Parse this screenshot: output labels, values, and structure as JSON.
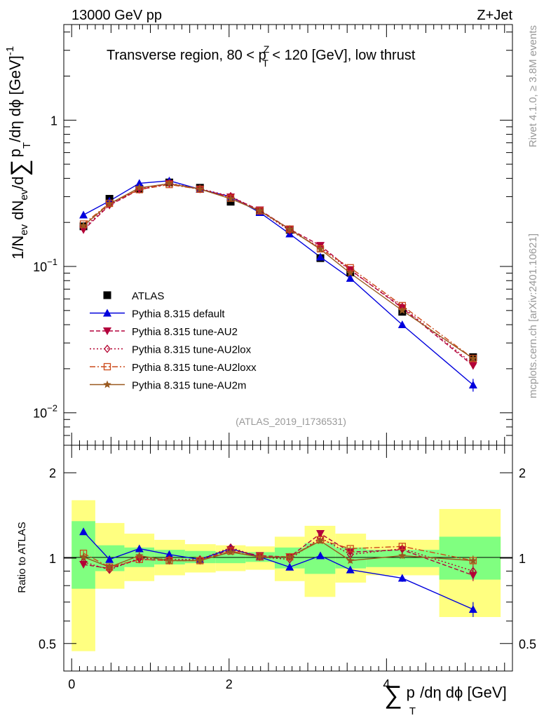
{
  "header": {
    "energy_label": "13000 GeV pp",
    "process_label": "Z+Jet"
  },
  "side_labels": {
    "rivet": "Rivet 4.1.0, ≥ 3.8M events",
    "source": "mcplots.cern.ch [arXiv:2401.10621]"
  },
  "watermark": "(ATLAS_2019_I1736531)",
  "colors": {
    "ATLAS": "#000000",
    "default": "#0000dd",
    "AU2": "#b3003c",
    "AU2lox": "#b3002e",
    "AU2loxx": "#cc4a1a",
    "AU2m": "#99591f",
    "band_inner": "#80ff80",
    "band_outer": "#ffff80"
  },
  "chart_data": [
    {
      "type": "line",
      "scale": "log",
      "title": "Transverse region, 80 < p_T^Z < 120 [GeV], low thrust",
      "title_parts": [
        "Transverse region, 80 < p",
        "Z",
        "T",
        " < 120 [GeV], low thrust"
      ],
      "ylabel": "1/N_ev dN_ev/d∑ p_T /dη dϕ [GeV]^-1",
      "ylabel_parts": [
        "1/N",
        "ev",
        " dN",
        "ev",
        "/d",
        "∑",
        "p",
        "T",
        "/dη dϕ  [GeV]",
        "-1"
      ],
      "xlim": [
        -0.1,
        5.6
      ],
      "ylim": [
        0.006,
        4.5
      ],
      "ytick_labels": [
        {
          "value": 1,
          "label": "1",
          "sup": ""
        },
        {
          "value": 0.1,
          "label": "10",
          "sup": "−1"
        },
        {
          "value": 0.01,
          "label": "10",
          "sup": "−2"
        }
      ],
      "x": [
        0.15,
        0.48,
        0.86,
        1.24,
        1.63,
        2.02,
        2.39,
        2.77,
        3.16,
        3.54,
        4.2,
        5.1
      ],
      "series": [
        {
          "name": "ATLAS",
          "key": "ATLAS",
          "marker": "square",
          "values": [
            0.188,
            0.29,
            0.34,
            0.375,
            0.345,
            0.277,
            0.237,
            0.178,
            0.114,
            0.091,
            0.049,
            0.024
          ]
        },
        {
          "name": "Pythia 8.315 default",
          "key": "default",
          "marker": "triangle-up",
          "dash": "",
          "values": [
            0.225,
            0.28,
            0.37,
            0.385,
            0.337,
            0.3,
            0.234,
            0.167,
            0.116,
            0.083,
            0.04,
            0.0155
          ]
        },
        {
          "name": "Pythia 8.315 tune-AU2",
          "key": "AU2",
          "marker": "triangle-down",
          "dash": "6,3",
          "values": [
            0.178,
            0.262,
            0.335,
            0.368,
            0.337,
            0.298,
            0.243,
            0.18,
            0.139,
            0.095,
            0.052,
            0.021
          ]
        },
        {
          "name": "Pythia 8.315 tune-AU2lox",
          "key": "AU2lox",
          "marker": "diamond",
          "dash": "2,3",
          "values": [
            0.183,
            0.264,
            0.338,
            0.37,
            0.34,
            0.302,
            0.24,
            0.176,
            0.135,
            0.094,
            0.053,
            0.0215
          ]
        },
        {
          "name": "Pythia 8.315 tune-AU2loxx",
          "key": "AU2loxx",
          "marker": "square-open",
          "dash": "8,3,2,3",
          "values": [
            0.195,
            0.27,
            0.335,
            0.363,
            0.337,
            0.293,
            0.24,
            0.18,
            0.132,
            0.098,
            0.054,
            0.0235
          ]
        },
        {
          "name": "Pythia 8.315 tune-AU2m",
          "key": "AU2m",
          "marker": "star",
          "dash": "",
          "values": [
            0.19,
            0.268,
            0.345,
            0.368,
            0.338,
            0.29,
            0.24,
            0.18,
            0.131,
            0.09,
            0.05,
            0.0235
          ]
        }
      ],
      "legend": [
        "ATLAS",
        "Pythia 8.315 default",
        "Pythia 8.315 tune-AU2",
        "Pythia 8.315 tune-AU2lox",
        "Pythia 8.315 tune-AU2loxx",
        "Pythia 8.315 tune-AU2m"
      ],
      "legend_position": "lower-left"
    },
    {
      "type": "line",
      "scale": "log",
      "ylabel": "Ratio to ATLAS",
      "xlabel": "∑ p_T /dη dϕ [GeV]",
      "xlabel_parts": [
        "∑",
        "p",
        "T",
        "/dη dϕ [GeV]"
      ],
      "xlim": [
        -0.1,
        5.6
      ],
      "ylim": [
        0.4,
        2.5
      ],
      "xticks": [
        0,
        2,
        4
      ],
      "ytick_labels": [
        "0.5",
        "1",
        "2"
      ],
      "ytick_values": [
        0.5,
        1,
        2
      ],
      "bins": [
        {
          "x0": 0.0,
          "x1": 0.3,
          "inner": [
            0.78,
            1.35
          ],
          "outer": [
            0.47,
            1.6
          ]
        },
        {
          "x0": 0.3,
          "x1": 0.67,
          "inner": [
            0.9,
            1.11
          ],
          "outer": [
            0.78,
            1.33
          ]
        },
        {
          "x0": 0.67,
          "x1": 1.05,
          "inner": [
            0.93,
            1.09
          ],
          "outer": [
            0.83,
            1.22
          ]
        },
        {
          "x0": 1.05,
          "x1": 1.44,
          "inner": [
            0.95,
            1.07
          ],
          "outer": [
            0.87,
            1.16
          ]
        },
        {
          "x0": 1.44,
          "x1": 1.83,
          "inner": [
            0.96,
            1.06
          ],
          "outer": [
            0.89,
            1.12
          ]
        },
        {
          "x0": 1.83,
          "x1": 2.21,
          "inner": [
            0.96,
            1.05
          ],
          "outer": [
            0.9,
            1.11
          ]
        },
        {
          "x0": 2.21,
          "x1": 2.58,
          "inner": [
            0.97,
            1.05
          ],
          "outer": [
            0.91,
            1.1
          ]
        },
        {
          "x0": 2.58,
          "x1": 2.96,
          "inner": [
            0.92,
            1.09
          ],
          "outer": [
            0.83,
            1.19
          ]
        },
        {
          "x0": 2.96,
          "x1": 3.35,
          "inner": [
            0.88,
            1.13
          ],
          "outer": [
            0.73,
            1.3
          ]
        },
        {
          "x0": 3.35,
          "x1": 3.74,
          "inner": [
            0.92,
            1.09
          ],
          "outer": [
            0.82,
            1.22
          ]
        },
        {
          "x0": 3.74,
          "x1": 4.67,
          "inner": [
            0.93,
            1.07
          ],
          "outer": [
            0.87,
            1.16
          ]
        },
        {
          "x0": 4.67,
          "x1": 5.45,
          "inner": [
            0.84,
            1.19
          ],
          "outer": [
            0.62,
            1.49
          ]
        }
      ],
      "x": [
        0.15,
        0.48,
        0.86,
        1.24,
        1.63,
        2.02,
        2.39,
        2.77,
        3.16,
        3.54,
        4.2,
        5.1
      ],
      "series": [
        {
          "name": "Pythia 8.315 default",
          "key": "default",
          "marker": "triangle-up",
          "dash": "",
          "values": [
            1.24,
            0.99,
            1.08,
            1.03,
            0.99,
            1.08,
            1.01,
            0.93,
            1.02,
            0.91,
            0.85,
            0.66
          ],
          "err": [
            0.03,
            0.02,
            0.015,
            0.015,
            0.015,
            0.015,
            0.015,
            0.015,
            0.02,
            0.02,
            0.025,
            0.04
          ]
        },
        {
          "name": "Pythia 8.315 tune-AU2",
          "key": "AU2",
          "marker": "triangle-down",
          "dash": "6,3",
          "values": [
            0.95,
            0.92,
            0.99,
            0.98,
            0.98,
            1.07,
            1.02,
            1.01,
            1.22,
            1.05,
            1.07,
            0.87
          ],
          "err": [
            0.02,
            0.015,
            0.015,
            0.015,
            0.015,
            0.015,
            0.015,
            0.015,
            0.02,
            0.02,
            0.025,
            0.04
          ]
        },
        {
          "name": "Pythia 8.315 tune-AU2lox",
          "key": "AU2lox",
          "marker": "diamond",
          "dash": "2,3",
          "values": [
            0.97,
            0.91,
            1.0,
            0.99,
            0.99,
            1.09,
            1.01,
            0.99,
            1.18,
            1.03,
            1.08,
            0.9
          ],
          "err": [
            0.02,
            0.015,
            0.015,
            0.015,
            0.015,
            0.015,
            0.015,
            0.015,
            0.02,
            0.02,
            0.025,
            0.04
          ]
        },
        {
          "name": "Pythia 8.315 tune-AU2loxx",
          "key": "AU2loxx",
          "marker": "square-open",
          "dash": "8,3,2,3",
          "values": [
            1.04,
            0.93,
            0.99,
            0.98,
            0.98,
            1.06,
            1.01,
            1.01,
            1.16,
            1.08,
            1.1,
            0.98
          ],
          "err": [
            0.02,
            0.015,
            0.015,
            0.015,
            0.015,
            0.015,
            0.015,
            0.015,
            0.02,
            0.02,
            0.025,
            0.04
          ]
        },
        {
          "name": "Pythia 8.315 tune-AU2m",
          "key": "AU2m",
          "marker": "star",
          "dash": "",
          "values": [
            1.01,
            0.93,
            1.02,
            0.98,
            0.98,
            1.05,
            1.01,
            1.01,
            1.15,
            0.98,
            1.02,
            0.98
          ],
          "err": [
            0.02,
            0.015,
            0.015,
            0.015,
            0.015,
            0.015,
            0.015,
            0.015,
            0.02,
            0.02,
            0.025,
            0.04
          ]
        }
      ]
    }
  ]
}
